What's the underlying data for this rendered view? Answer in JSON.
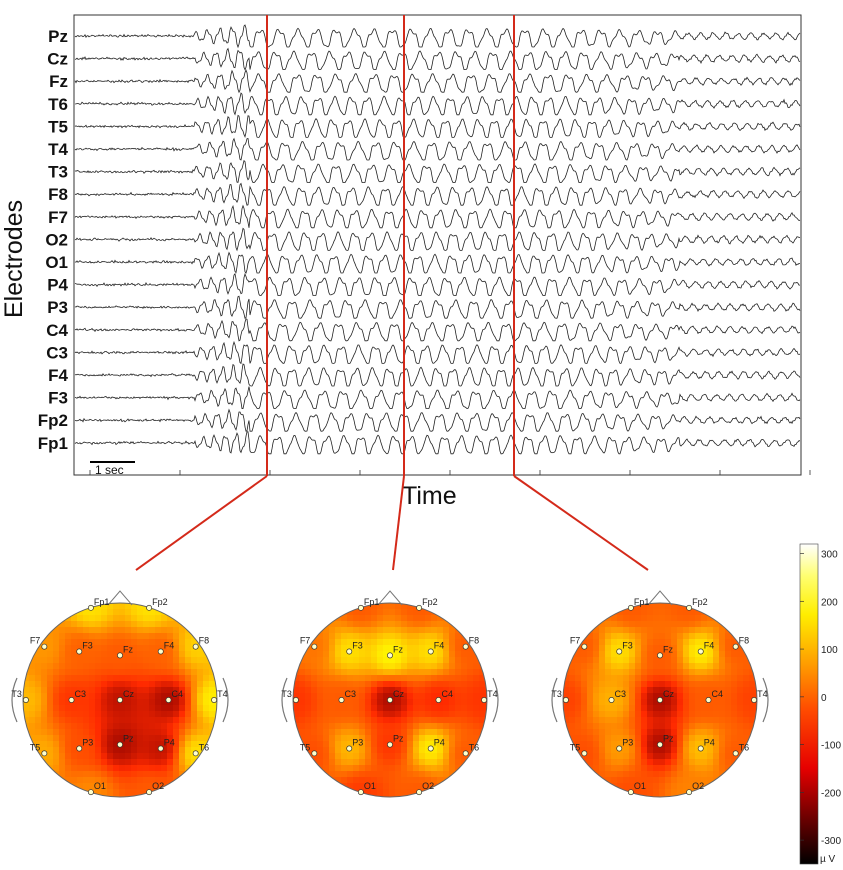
{
  "chart_data": [
    {
      "type": "line",
      "ylabel": "Electrodes",
      "xlabel": "Time",
      "scale_bar_label": "1 sec",
      "channels": [
        "Pz",
        "Cz",
        "Fz",
        "T6",
        "T5",
        "T4",
        "T3",
        "F8",
        "F7",
        "O2",
        "O1",
        "P4",
        "P3",
        "C4",
        "C3",
        "F4",
        "F3",
        "Fp2",
        "Fp1"
      ],
      "marker_colors": "#d42a1a",
      "marker_count": 3
    },
    {
      "type": "heatmap",
      "topomaps": [
        {
          "electrodes": [
            {
              "name": "Fp1",
              "v": 150
            },
            {
              "name": "Fp2",
              "v": 150
            },
            {
              "name": "F7",
              "v": 50
            },
            {
              "name": "F3",
              "v": -30
            },
            {
              "name": "Fz",
              "v": -40
            },
            {
              "name": "F4",
              "v": -30
            },
            {
              "name": "F8",
              "v": 130
            },
            {
              "name": "T3",
              "v": 100
            },
            {
              "name": "C3",
              "v": -100
            },
            {
              "name": "Cz",
              "v": -180
            },
            {
              "name": "C4",
              "v": -200
            },
            {
              "name": "T4",
              "v": 170
            },
            {
              "name": "T5",
              "v": 80
            },
            {
              "name": "P3",
              "v": -60
            },
            {
              "name": "Pz",
              "v": -200
            },
            {
              "name": "P4",
              "v": -180
            },
            {
              "name": "T6",
              "v": 150
            },
            {
              "name": "O1",
              "v": 30
            },
            {
              "name": "O2",
              "v": -40
            }
          ]
        },
        {
          "electrodes": [
            {
              "name": "Fp1",
              "v": -40
            },
            {
              "name": "Fp2",
              "v": -40
            },
            {
              "name": "F7",
              "v": 0
            },
            {
              "name": "F3",
              "v": 150
            },
            {
              "name": "Fz",
              "v": 180
            },
            {
              "name": "F4",
              "v": 150
            },
            {
              "name": "F8",
              "v": -40
            },
            {
              "name": "T3",
              "v": -100
            },
            {
              "name": "C3",
              "v": -40
            },
            {
              "name": "Cz",
              "v": -200
            },
            {
              "name": "C4",
              "v": -120
            },
            {
              "name": "T4",
              "v": -100
            },
            {
              "name": "T5",
              "v": -60
            },
            {
              "name": "P3",
              "v": 100
            },
            {
              "name": "Pz",
              "v": -100
            },
            {
              "name": "P4",
              "v": 170
            },
            {
              "name": "T6",
              "v": -40
            },
            {
              "name": "O1",
              "v": -90
            },
            {
              "name": "O2",
              "v": -40
            }
          ]
        },
        {
          "electrodes": [
            {
              "name": "Fp1",
              "v": -40
            },
            {
              "name": "Fp2",
              "v": -40
            },
            {
              "name": "F7",
              "v": -40
            },
            {
              "name": "F3",
              "v": 150
            },
            {
              "name": "Fz",
              "v": -40
            },
            {
              "name": "F4",
              "v": 170
            },
            {
              "name": "F8",
              "v": -40
            },
            {
              "name": "T3",
              "v": -80
            },
            {
              "name": "C3",
              "v": 90
            },
            {
              "name": "Cz",
              "v": -200
            },
            {
              "name": "C4",
              "v": -40
            },
            {
              "name": "T4",
              "v": -80
            },
            {
              "name": "T5",
              "v": -60
            },
            {
              "name": "P3",
              "v": 60
            },
            {
              "name": "Pz",
              "v": -200
            },
            {
              "name": "P4",
              "v": 110
            },
            {
              "name": "T6",
              "v": -40
            },
            {
              "name": "O1",
              "v": -60
            },
            {
              "name": "O2",
              "v": 20
            }
          ]
        }
      ],
      "colorbar": {
        "ticks": [
          300,
          200,
          100,
          0,
          -100,
          -200,
          -300
        ],
        "tick_labels": [
          "300",
          "200",
          "100",
          "0",
          "-100",
          "-200",
          "-300"
        ],
        "unit": "µ V",
        "range": [
          -350,
          320
        ],
        "colormap": [
          "#000000",
          "#8b0000",
          "#ff2a00",
          "#ff6a00",
          "#ffb000",
          "#ffff00",
          "#ffffff"
        ]
      }
    }
  ]
}
